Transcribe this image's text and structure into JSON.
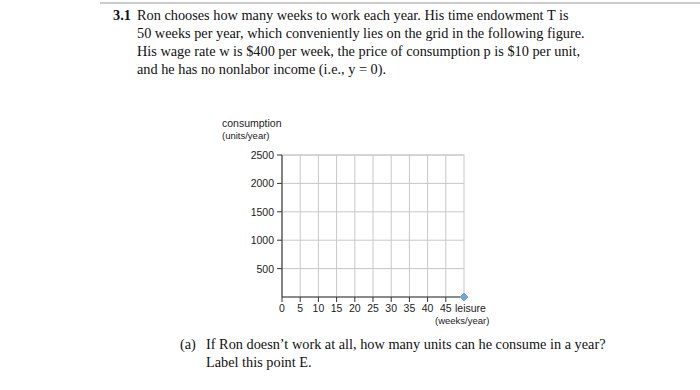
{
  "problem": {
    "number": "3.1",
    "lines": [
      "Ron chooses how many weeks to work each year. His time endowment T is",
      "50 weeks per year, which conveniently lies on the grid in the following figure.",
      "His wage rate w is $400 per week, the price of consumption p is $10 per unit,",
      "and he has no nonlabor income (i.e., y = 0)."
    ],
    "part_a": {
      "label": "(a)",
      "lines": [
        "If Ron doesn’t work at all, how many units can he consume in a year?",
        "Label this point E."
      ]
    }
  },
  "chart_data": {
    "type": "scatter",
    "y_label": [
      "consumption",
      "(units/year)"
    ],
    "x_label": [
      "leisure",
      "(weeks/year)"
    ],
    "xlim": [
      0,
      50
    ],
    "ylim": [
      0,
      2500
    ],
    "xticks": [
      0,
      5,
      10,
      15,
      20,
      25,
      30,
      35,
      40,
      45
    ],
    "yticks": [
      500,
      1000,
      1500,
      2000,
      2500
    ],
    "grid": true,
    "series": [
      {
        "type": "scatter",
        "color": "#6fa8dc",
        "marker": "diamond",
        "x": [
          50
        ],
        "values": [
          0
        ]
      }
    ]
  }
}
